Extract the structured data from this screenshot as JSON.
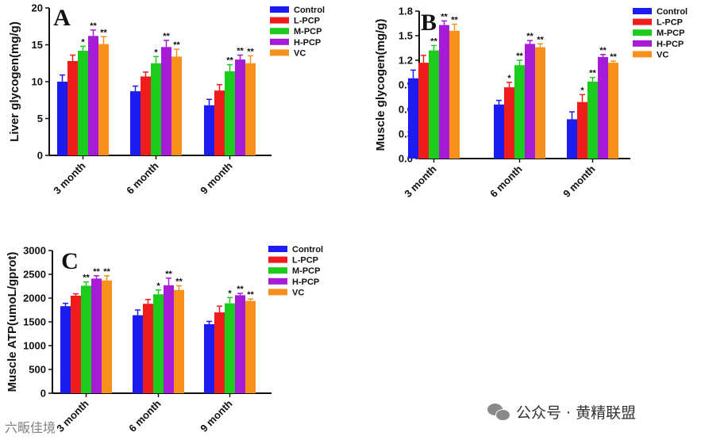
{
  "legend": [
    {
      "label": "Control",
      "color": "#1c1cf0"
    },
    {
      "label": "L-PCP",
      "color": "#f01c1c"
    },
    {
      "label": "M-PCP",
      "color": "#1ccc1c"
    },
    {
      "label": "H-PCP",
      "color": "#a61cd6"
    },
    {
      "label": "VC",
      "color": "#f7901c"
    }
  ],
  "chart_data": [
    {
      "type": "bar",
      "panel_label": "A",
      "ylabel": "Liver glycogen(mg/g)",
      "categories": [
        "3 month",
        "6 month",
        "9 month"
      ],
      "ylim": [
        0,
        20
      ],
      "yticks": [
        "0",
        "5",
        "10",
        "15",
        "20"
      ],
      "grid": false,
      "legend_position": "top-right",
      "series": [
        {
          "name": "Control",
          "values": [
            10.0,
            8.7,
            6.8
          ],
          "errors": [
            0.9,
            0.7,
            0.8
          ],
          "sig": [
            "",
            "",
            ""
          ]
        },
        {
          "name": "L-PCP",
          "values": [
            12.8,
            10.7,
            8.8
          ],
          "errors": [
            0.8,
            0.6,
            0.8
          ],
          "sig": [
            "",
            "",
            ""
          ]
        },
        {
          "name": "M-PCP",
          "values": [
            14.2,
            12.5,
            11.4
          ],
          "errors": [
            0.6,
            0.9,
            0.9
          ],
          "sig": [
            "*",
            "*",
            "**"
          ]
        },
        {
          "name": "H-PCP",
          "values": [
            16.2,
            14.7,
            13.0
          ],
          "errors": [
            0.8,
            0.9,
            0.6
          ],
          "sig": [
            "**",
            "**",
            "**"
          ]
        },
        {
          "name": "VC",
          "values": [
            15.1,
            13.4,
            12.5
          ],
          "errors": [
            1.0,
            1.0,
            1.0
          ],
          "sig": [
            "**",
            "**",
            "**"
          ]
        }
      ]
    },
    {
      "type": "bar",
      "panel_label": "B",
      "ylabel": "Muscle glycogen(mg/g)",
      "categories": [
        "3 month",
        "6 month",
        "9 month"
      ],
      "ylim": [
        0,
        1.8
      ],
      "yticks": [
        "0.0",
        "0.3",
        "0.6",
        "0.9",
        "1.2",
        "1.5",
        "1.8"
      ],
      "grid": false,
      "legend_position": "top-right",
      "series": [
        {
          "name": "Control",
          "values": [
            0.98,
            0.66,
            0.48
          ],
          "errors": [
            0.1,
            0.05,
            0.09
          ],
          "sig": [
            "",
            "",
            ""
          ]
        },
        {
          "name": "L-PCP",
          "values": [
            1.17,
            0.87,
            0.69
          ],
          "errors": [
            0.09,
            0.06,
            0.09
          ],
          "sig": [
            "",
            "*",
            "*"
          ]
        },
        {
          "name": "M-PCP",
          "values": [
            1.32,
            1.14,
            0.94
          ],
          "errors": [
            0.06,
            0.06,
            0.05
          ],
          "sig": [
            "**",
            "**",
            "**"
          ]
        },
        {
          "name": "H-PCP",
          "values": [
            1.63,
            1.4,
            1.24
          ],
          "errors": [
            0.05,
            0.04,
            0.03
          ],
          "sig": [
            "**",
            "**",
            "**"
          ]
        },
        {
          "name": "VC",
          "values": [
            1.56,
            1.36,
            1.17
          ],
          "errors": [
            0.08,
            0.04,
            0.02
          ],
          "sig": [
            "**",
            "**",
            "**"
          ]
        }
      ]
    },
    {
      "type": "bar",
      "panel_label": "C",
      "ylabel": "Muscle ATP(umoL/gprot)",
      "categories": [
        "3 month",
        "6 month",
        "9 month"
      ],
      "ylim": [
        0,
        3000
      ],
      "yticks": [
        "0",
        "500",
        "1000",
        "1500",
        "2000",
        "2500",
        "3000"
      ],
      "grid": false,
      "legend_position": "top-right",
      "series": [
        {
          "name": "Control",
          "values": [
            1830,
            1640,
            1450
          ],
          "errors": [
            60,
            110,
            60
          ],
          "sig": [
            "",
            "",
            ""
          ]
        },
        {
          "name": "L-PCP",
          "values": [
            2050,
            1880,
            1700
          ],
          "errors": [
            40,
            90,
            130
          ],
          "sig": [
            "",
            "",
            ""
          ]
        },
        {
          "name": "M-PCP",
          "values": [
            2260,
            2080,
            1890
          ],
          "errors": [
            80,
            90,
            120
          ],
          "sig": [
            "**",
            "*",
            "*"
          ]
        },
        {
          "name": "H-PCP",
          "values": [
            2410,
            2270,
            2060
          ],
          "errors": [
            60,
            150,
            40
          ],
          "sig": [
            "**",
            "**",
            "**"
          ]
        },
        {
          "name": "VC",
          "values": [
            2370,
            2170,
            1940
          ],
          "errors": [
            100,
            90,
            40
          ],
          "sig": [
            "**",
            "**",
            "**"
          ]
        }
      ]
    }
  ],
  "watermark_left": "六畈佳境",
  "watermark_right": "公众号 · 黄精联盟"
}
